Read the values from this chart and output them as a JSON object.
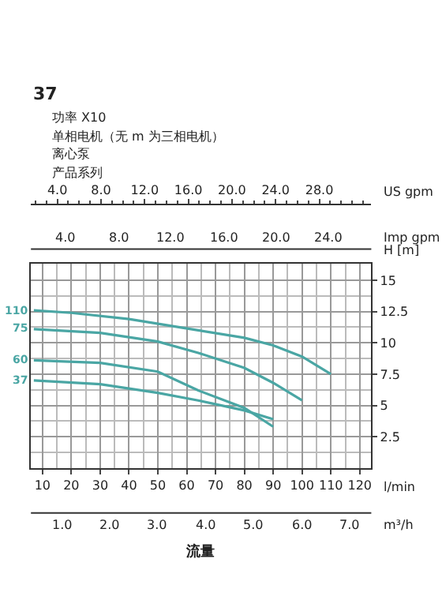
{
  "chart_data": {
    "type": "line",
    "xlabel": "流量",
    "ylabel": "H [m]",
    "annotations": [
      "37",
      "功率 X10",
      "单相电机（无 m 为三相电机）",
      "离心泵",
      "产品系列",
      "l/min",
      "Imp gpm",
      "4.0",
      "8.0",
      "12.0",
      "16.0",
      "20.0",
      "24.0",
      "m³/h",
      "1.0",
      "2.0",
      "3.0",
      "4.0",
      "5.0",
      "6.0",
      "7.0"
    ],
    "xlim": [
      6,
      124
    ],
    "xticks": [
      10,
      20,
      30,
      40,
      50,
      60,
      70,
      80,
      90,
      100,
      110,
      120
    ],
    "x2lim": [
      1.585,
      32.76
    ],
    "x2ticks": [
      {
        "value": 4,
        "label": "4.0"
      },
      {
        "value": 8,
        "label": "8.0"
      },
      {
        "value": 12,
        "label": "12.0"
      },
      {
        "value": 16,
        "label": "16.0"
      },
      {
        "value": 20,
        "label": "20.0"
      },
      {
        "value": 24,
        "label": "24.0"
      },
      {
        "value": 28,
        "label": "28.0"
      }
    ],
    "x2label": "US gpm",
    "ylim": [
      0,
      16.3
    ],
    "yticks": [
      2.5,
      5,
      7.5,
      10,
      12.5,
      15
    ],
    "grid": true,
    "series": [
      {
        "name": "110",
        "color": "#4aa6a4",
        "x": [
          7,
          20,
          40,
          64,
          80,
          90,
          100,
          110
        ],
        "values": [
          12.6,
          12.4,
          11.9,
          11.0,
          10.4,
          9.8,
          8.9,
          7.5
        ]
      },
      {
        "name": "75",
        "color": "#4aa6a4",
        "x": [
          7,
          30,
          50,
          64,
          80,
          90,
          100
        ],
        "values": [
          11.1,
          10.8,
          10.1,
          9.2,
          8.0,
          6.8,
          5.4
        ]
      },
      {
        "name": "60",
        "color": "#4aa6a4",
        "x": [
          7,
          30,
          50,
          64,
          80,
          90
        ],
        "values": [
          8.6,
          8.4,
          7.7,
          6.2,
          4.8,
          3.3
        ]
      },
      {
        "name": "37",
        "color": "#4aa6a4",
        "x": [
          7,
          30,
          50,
          64,
          80,
          90
        ],
        "values": [
          7.0,
          6.7,
          6.0,
          5.4,
          4.6,
          3.9
        ]
      }
    ]
  }
}
